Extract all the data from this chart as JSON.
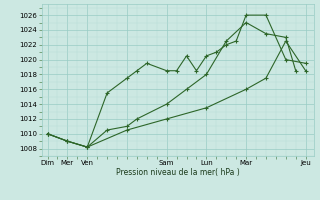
{
  "background_color": "#cce8e2",
  "grid_color_major": "#99ccc5",
  "grid_color_minor": "#b8ddd8",
  "line_color": "#2d6629",
  "ylabel": "Pression niveau de la mer( hPa )",
  "ylim": [
    1007,
    1027.5
  ],
  "yticks": [
    1008,
    1010,
    1012,
    1014,
    1016,
    1018,
    1020,
    1022,
    1024,
    1026
  ],
  "line1_x": [
    0,
    0.5,
    1,
    1.5,
    2,
    2.25,
    2.5,
    3,
    3.25,
    3.5,
    3.75,
    4,
    4.25,
    4.5,
    4.75,
    5,
    5.5,
    6,
    6.5
  ],
  "line1_y": [
    1010,
    1009,
    1008.2,
    1015.5,
    1017.5,
    1018.5,
    1019.5,
    1018.5,
    1018.5,
    1020.5,
    1018.5,
    1020.5,
    1021,
    1022,
    1022.5,
    1026,
    1026,
    1020,
    1019.5
  ],
  "line2_x": [
    0,
    0.5,
    1,
    1.5,
    2,
    2.25,
    3,
    3.5,
    4,
    4.5,
    5,
    5.5,
    6,
    6.25
  ],
  "line2_y": [
    1010,
    1009,
    1008.2,
    1010.5,
    1011,
    1012,
    1014,
    1016,
    1018,
    1022.5,
    1025,
    1023.5,
    1023,
    1018.5
  ],
  "line3_x": [
    0,
    0.5,
    1,
    2,
    3,
    4,
    5,
    5.5,
    6,
    6.5
  ],
  "line3_y": [
    1010,
    1009,
    1008.2,
    1010.5,
    1012,
    1013.5,
    1016,
    1017.5,
    1022.5,
    1018.5
  ],
  "xtick_positions": [
    0,
    0.5,
    1,
    2,
    3,
    4,
    5,
    6.5
  ],
  "xtick_labels": [
    "Dim",
    "Mer",
    "Ven",
    "",
    "Sam",
    "Lun",
    "Mar",
    "Jeu"
  ],
  "xtick_display": [
    0,
    0.5,
    1,
    2,
    3,
    4,
    5,
    6.5
  ],
  "xlim": [
    -0.15,
    6.7
  ]
}
